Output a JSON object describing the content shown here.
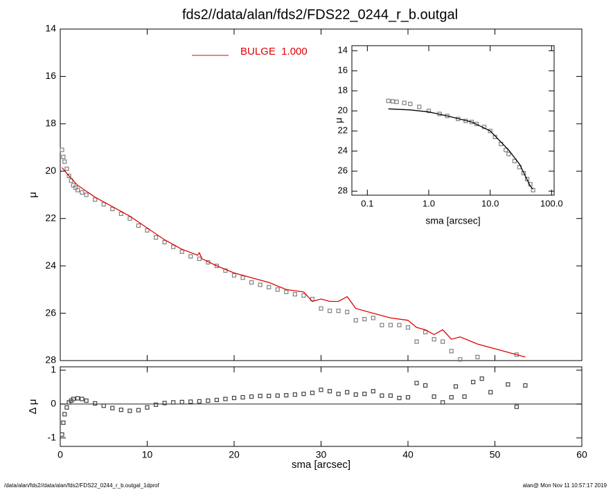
{
  "title": "fds2//data/alan/fds2/FDS22_0244_r_b.outgal",
  "footer": {
    "left": "/data/alan/fds2//data/alan/fds2/FDS22_0244_r_b.outgal_1dprof",
    "right": "alan@  Mon Nov 11 10:57:17 2019"
  },
  "chart_data": [
    {
      "type": "scatter",
      "ylabel": "μ",
      "xlim": [
        0,
        60
      ],
      "ylim": [
        28,
        14
      ],
      "yticks": [
        14,
        16,
        18,
        20,
        22,
        24,
        26,
        28
      ],
      "series": [
        {
          "color": "#808080",
          "style": "marker",
          "x": [
            0.2,
            0.35,
            0.5,
            0.75,
            1,
            1.25,
            1.5,
            1.75,
            2,
            2.5,
            3,
            4,
            5,
            6,
            7,
            8,
            9,
            10,
            11,
            12,
            13,
            14,
            15,
            16,
            17,
            18,
            19,
            20,
            21,
            22,
            23,
            24,
            25,
            26,
            27,
            28,
            29,
            30,
            31,
            32,
            33,
            34,
            35,
            36,
            37,
            38,
            39,
            40,
            41,
            42,
            43,
            44,
            45,
            46,
            48,
            52.5
          ],
          "values": [
            19.1,
            19.4,
            19.6,
            19.9,
            20.2,
            20.4,
            20.6,
            20.7,
            20.8,
            20.9,
            21.0,
            21.2,
            21.4,
            21.6,
            21.8,
            22.0,
            22.3,
            22.5,
            22.8,
            23.0,
            23.2,
            23.4,
            23.6,
            23.7,
            23.85,
            24.0,
            24.2,
            24.4,
            24.5,
            24.7,
            24.8,
            24.9,
            25.0,
            25.1,
            25.2,
            25.25,
            25.4,
            25.8,
            25.9,
            25.9,
            25.95,
            26.3,
            26.25,
            26.2,
            26.5,
            26.5,
            26.5,
            26.6,
            27.2,
            26.8,
            27.1,
            27.2,
            27.6,
            27.95,
            27.85,
            27.75
          ]
        },
        {
          "name": "BULGE  1.000",
          "color": "#e00000",
          "style": "line",
          "x": [
            0.2,
            1,
            2,
            4,
            6,
            8,
            10,
            12,
            14,
            15.8,
            16,
            16.3,
            18,
            20,
            22,
            24,
            26,
            28,
            29,
            30,
            31,
            32,
            33,
            34,
            36,
            38,
            40,
            41,
            42,
            43,
            44,
            45,
            46,
            48,
            50,
            52,
            53.5
          ],
          "values": [
            19.85,
            20.2,
            20.6,
            21.1,
            21.5,
            21.9,
            22.4,
            22.9,
            23.3,
            23.55,
            23.45,
            23.7,
            24.0,
            24.3,
            24.5,
            24.7,
            25.0,
            25.1,
            25.5,
            25.4,
            25.5,
            25.5,
            25.3,
            25.8,
            26.0,
            26.2,
            26.3,
            26.6,
            26.7,
            26.9,
            26.7,
            27.1,
            27.0,
            27.3,
            27.5,
            27.7,
            27.85
          ]
        }
      ]
    },
    {
      "type": "scatter",
      "ylabel": "Δ μ",
      "xlabel": "sma [arcsec]",
      "xlim": [
        0,
        60
      ],
      "xticks": [
        0,
        10,
        20,
        30,
        40,
        50,
        60
      ],
      "ylim": [
        -1.25,
        1.1
      ],
      "yticks": [
        -1,
        0,
        1
      ],
      "series": [
        {
          "color": "#404040",
          "style": "marker",
          "x": [
            0.2,
            0.35,
            0.5,
            0.75,
            1,
            1.25,
            1.5,
            2,
            2.5,
            3,
            4,
            5,
            6,
            7,
            8,
            9,
            10,
            11,
            12,
            13,
            14,
            15,
            16,
            17,
            18,
            19,
            20,
            21,
            22,
            23,
            24,
            25,
            26,
            27,
            28,
            29,
            30,
            31,
            32,
            33,
            34,
            35,
            36,
            37,
            38,
            39,
            40,
            41,
            42,
            43,
            44,
            45,
            45.5,
            46.5,
            47.5,
            48.5,
            49.5,
            51.5,
            52.5,
            53.5
          ],
          "values": [
            -0.9,
            -0.55,
            -0.3,
            -0.1,
            0.05,
            0.1,
            0.15,
            0.17,
            0.15,
            0.1,
            0.02,
            -0.05,
            -0.12,
            -0.17,
            -0.2,
            -0.18,
            -0.1,
            -0.02,
            0.03,
            0.05,
            0.06,
            0.07,
            0.08,
            0.1,
            0.12,
            0.15,
            0.18,
            0.2,
            0.22,
            0.24,
            0.24,
            0.25,
            0.26,
            0.28,
            0.3,
            0.33,
            0.42,
            0.38,
            0.3,
            0.35,
            0.28,
            0.3,
            0.38,
            0.25,
            0.25,
            0.18,
            0.2,
            0.62,
            0.55,
            0.22,
            0.05,
            0.2,
            0.52,
            0.22,
            0.65,
            0.75,
            0.35,
            0.58,
            -0.08,
            0.55
          ]
        }
      ]
    },
    {
      "type": "scatter",
      "ylabel": "μ",
      "xlabel": "sma [arcsec]",
      "xlog": true,
      "xlim": [
        0.056,
        110
      ],
      "xticks": [
        0.1,
        {
          "value": 1,
          "label": "1.0"
        },
        {
          "value": 10,
          "label": "10.0"
        },
        {
          "value": 100,
          "label": "100.0"
        }
      ],
      "ylim": [
        28.4,
        13.5
      ],
      "yticks": [
        14,
        16,
        18,
        20,
        22,
        24,
        26,
        28
      ],
      "series": [
        {
          "color": "#808080",
          "style": "marker",
          "x": [
            0.22,
            0.26,
            0.3,
            0.4,
            0.5,
            0.7,
            1,
            1.5,
            2,
            3,
            4,
            5,
            6,
            8,
            10,
            12,
            15,
            18,
            20,
            25,
            30,
            35,
            40,
            45,
            50
          ],
          "values": [
            19.0,
            19.05,
            19.1,
            19.2,
            19.3,
            19.6,
            20.0,
            20.3,
            20.5,
            20.8,
            21.0,
            21.1,
            21.3,
            21.6,
            22.0,
            22.6,
            23.3,
            23.9,
            24.3,
            25.0,
            25.6,
            26.2,
            26.8,
            27.3,
            27.9
          ]
        },
        {
          "color": "#000000",
          "style": "line",
          "x": [
            0.22,
            0.5,
            1,
            2,
            5,
            10,
            20,
            30,
            45,
            50
          ],
          "values": [
            19.8,
            19.9,
            20.1,
            20.5,
            21.1,
            22.0,
            23.9,
            25.3,
            27.5,
            27.8
          ]
        }
      ]
    }
  ]
}
